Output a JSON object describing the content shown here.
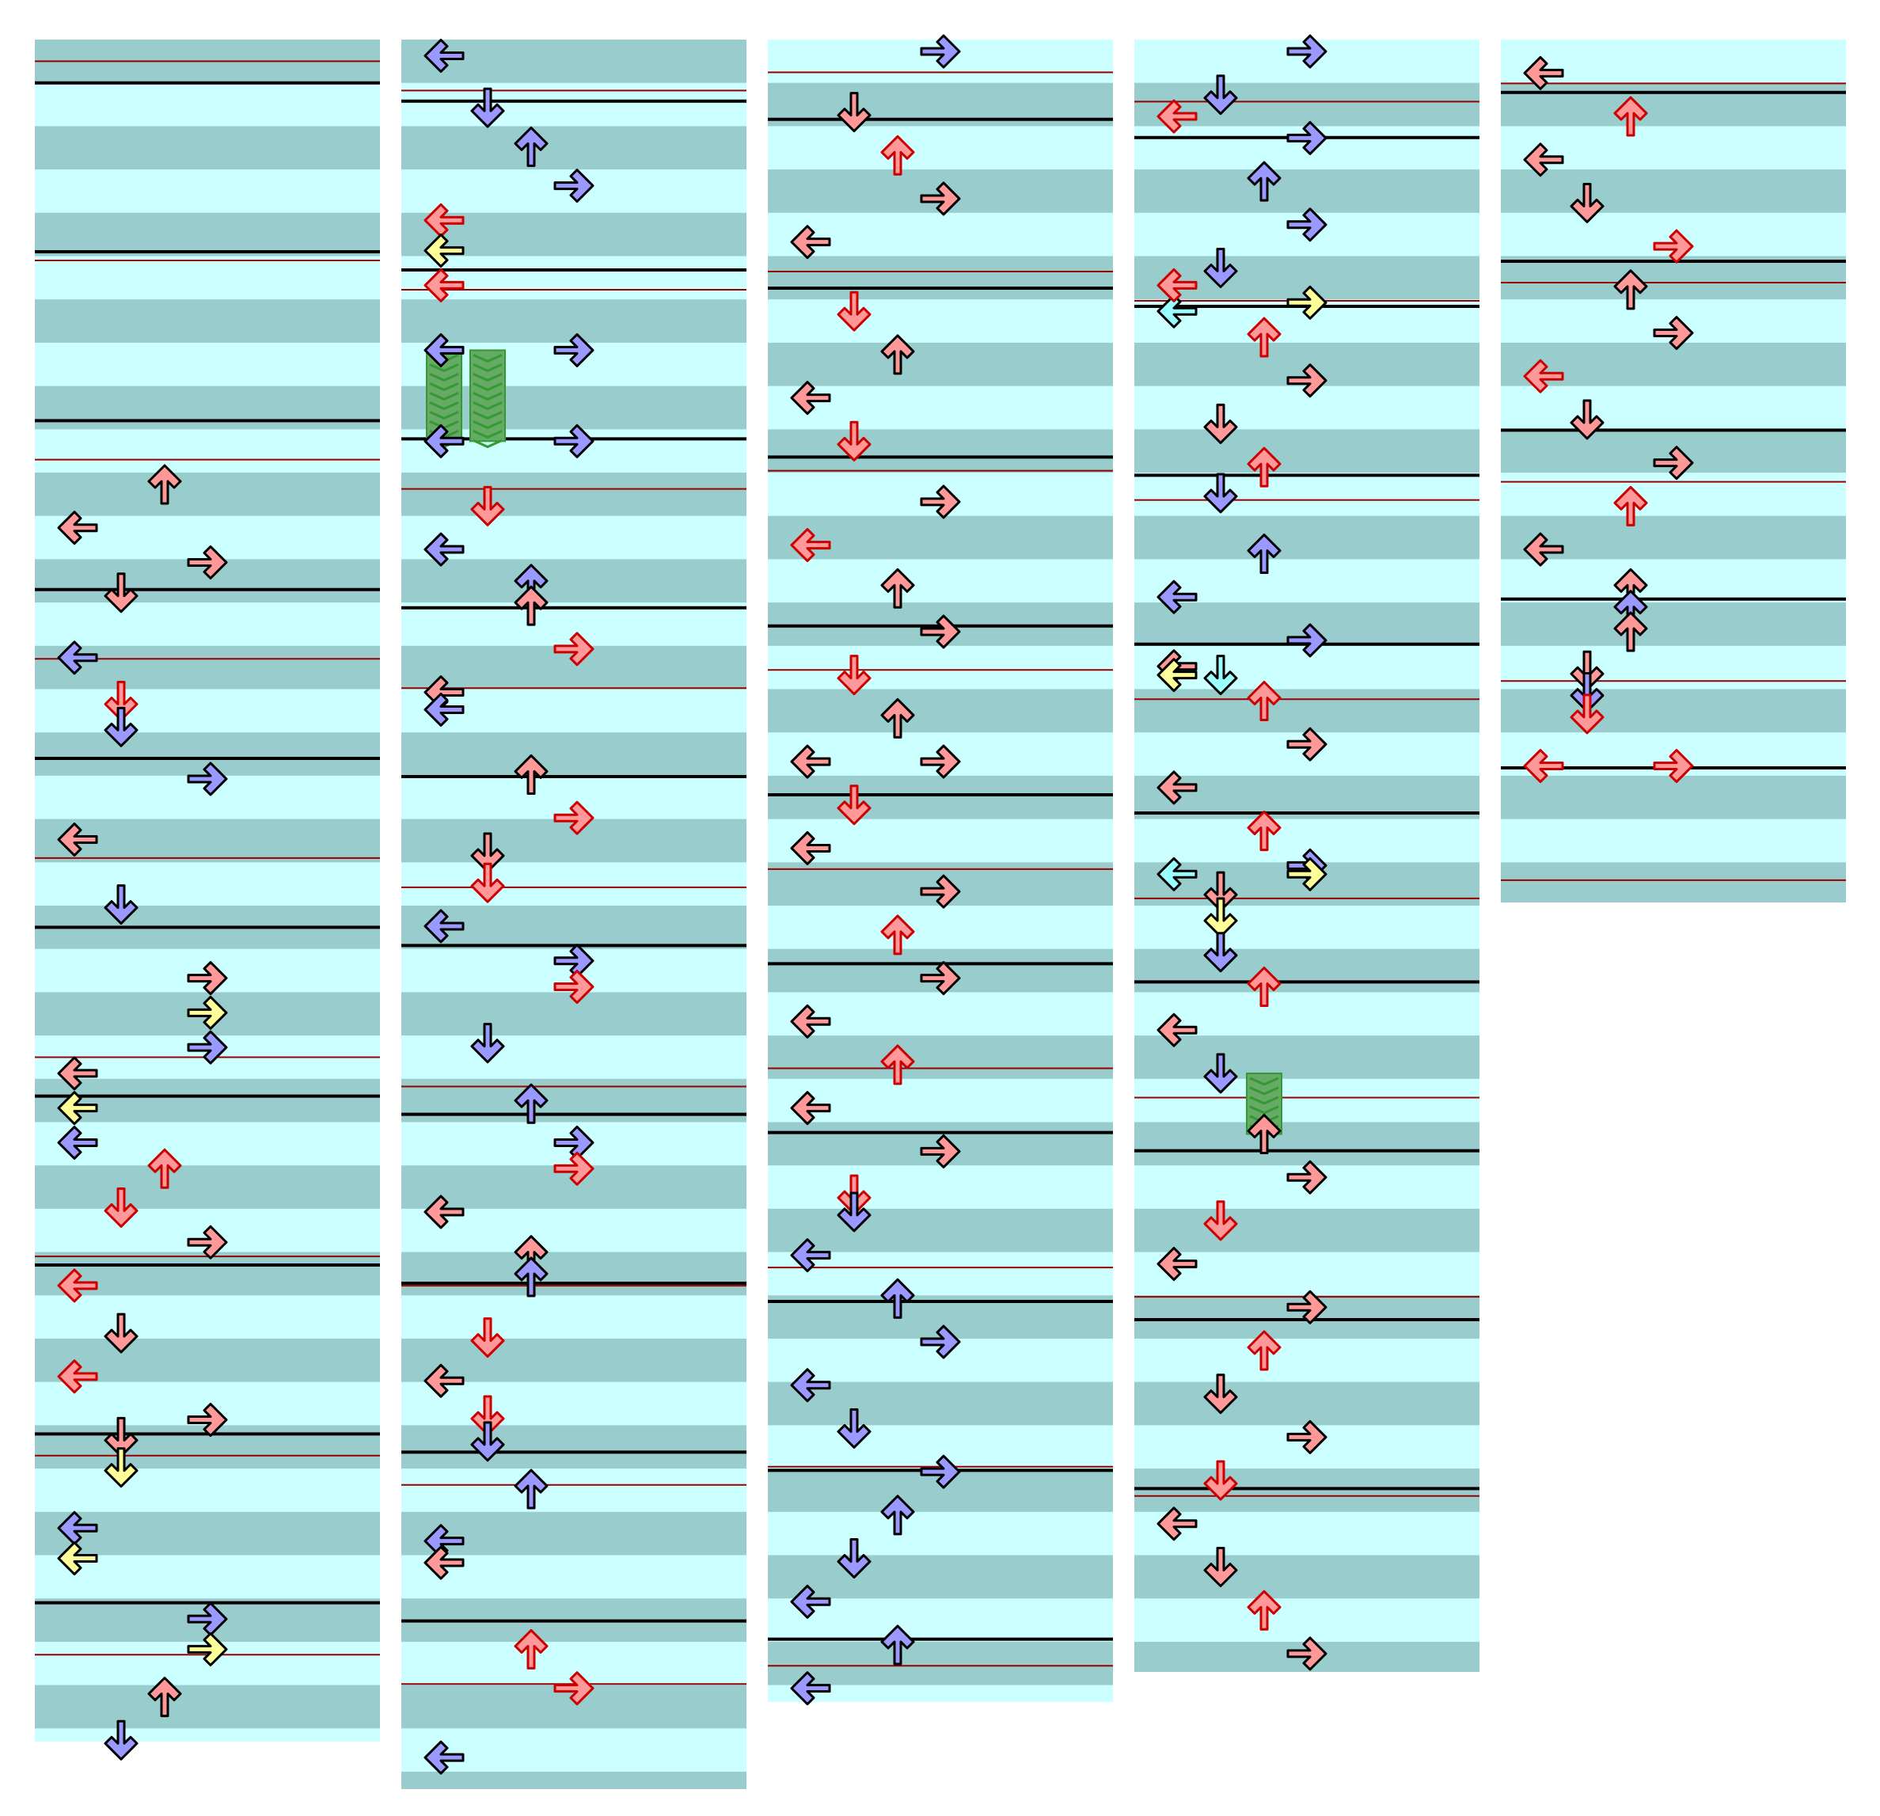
{
  "colors": {
    "background": "#ffffff",
    "lane_light": "#ccffff",
    "lane_dark": "#99cccc",
    "beat_line": "#000000",
    "bpm_line": "#990000",
    "arrow_red": "#ff9999",
    "arrow_blue": "#9999ff",
    "arrow_yellow": "#ffff99",
    "arrow_cyan": "#99ffff",
    "arrow_outline": "#000000",
    "arrow_outline_red": "#cc0000",
    "freeze_fill": "#66aa66",
    "freeze_stripe": "#339933"
  },
  "arrow_icons": {
    "left": "left-arrow-icon",
    "down": "down-arrow-icon",
    "up": "up-arrow-icon",
    "right": "right-arrow-icon"
  },
  "columns": [
    {
      "name": "column-1",
      "notes": [
        [
          "U",
          "red",
          10.0
        ],
        [
          "L",
          "red",
          11.0
        ],
        [
          "R",
          "red",
          11.8
        ],
        [
          "D",
          "red",
          12.5
        ],
        [
          "L",
          "blue",
          14.0
        ],
        [
          "D",
          "red",
          15.0
        ],
        [
          "D",
          "blue",
          15.6
        ],
        [
          "R",
          "blue",
          16.8
        ],
        [
          "L",
          "red",
          18.2
        ],
        [
          "D",
          "blue",
          19.7
        ],
        [
          "R",
          "red",
          21.4
        ],
        [
          "R",
          "yellow",
          22.2
        ],
        [
          "R",
          "blue",
          23.0
        ],
        [
          "L",
          "red",
          23.6
        ],
        [
          "L",
          "yellow",
          24.4
        ],
        [
          "L",
          "blue",
          25.2
        ],
        [
          "U",
          "red",
          25.8
        ],
        [
          "D",
          "red",
          26.7
        ],
        [
          "R",
          "red",
          27.5
        ],
        [
          "L",
          "red",
          28.5
        ],
        [
          "D",
          "red",
          29.6
        ],
        [
          "L",
          "red",
          30.6
        ],
        [
          "R",
          "red",
          31.6
        ],
        [
          "D",
          "red",
          32.0
        ],
        [
          "D",
          "yellow",
          32.7
        ],
        [
          "L",
          "blue",
          34.1
        ],
        [
          "L",
          "yellow",
          34.8
        ],
        [
          "R",
          "blue",
          36.2
        ],
        [
          "R",
          "yellow",
          36.9
        ],
        [
          "U",
          "red",
          38.0
        ],
        [
          "D",
          "blue",
          39.0
        ]
      ]
    },
    {
      "name": "column-2",
      "notes": [
        [
          "L",
          "blue",
          0.1
        ],
        [
          "D",
          "blue",
          1.3
        ],
        [
          "U",
          "blue",
          2.2
        ],
        [
          "R",
          "blue",
          3.1
        ],
        [
          "L",
          "red",
          3.9
        ],
        [
          "L",
          "yellow",
          4.6
        ],
        [
          "L",
          "red",
          5.4
        ],
        [
          "R",
          "blue",
          6.9
        ],
        [
          "L",
          "blue",
          6.9
        ],
        [
          "R",
          "blue",
          9.0
        ],
        [
          "L",
          "blue",
          9.0
        ],
        [
          "D",
          "red",
          10.5
        ],
        [
          "L",
          "blue",
          11.5
        ],
        [
          "U",
          "blue",
          12.3
        ],
        [
          "U",
          "red",
          12.8
        ],
        [
          "R",
          "red",
          13.8
        ],
        [
          "L",
          "red",
          14.8
        ],
        [
          "L",
          "blue",
          15.2
        ],
        [
          "U",
          "red",
          16.7
        ],
        [
          "R",
          "red",
          17.7
        ],
        [
          "D",
          "red",
          18.5
        ],
        [
          "D",
          "red",
          19.2
        ],
        [
          "L",
          "blue",
          20.2
        ],
        [
          "R",
          "blue",
          21.0
        ],
        [
          "R",
          "red",
          21.6
        ],
        [
          "D",
          "blue",
          22.9
        ],
        [
          "U",
          "blue",
          24.3
        ],
        [
          "R",
          "blue",
          25.2
        ],
        [
          "R",
          "red",
          25.8
        ],
        [
          "L",
          "red",
          26.8
        ],
        [
          "U",
          "red",
          27.8
        ],
        [
          "U",
          "blue",
          28.3
        ],
        [
          "D",
          "red",
          29.7
        ],
        [
          "L",
          "red",
          30.7
        ],
        [
          "D",
          "red",
          31.5
        ],
        [
          "D",
          "blue",
          32.1
        ],
        [
          "U",
          "blue",
          33.2
        ],
        [
          "L",
          "blue",
          34.4
        ],
        [
          "L",
          "red",
          34.9
        ],
        [
          "U",
          "red",
          36.9
        ],
        [
          "R",
          "red",
          37.8
        ],
        [
          "L",
          "blue",
          39.4
        ],
        [
          "R",
          "blue",
          40.5
        ]
      ],
      "freezes": [
        {
          "lane": "L",
          "start": 6.9,
          "end": 9.0
        },
        {
          "lane": "D",
          "start": 6.9,
          "end": 9.0
        }
      ]
    },
    {
      "name": "column-3",
      "notes": [
        [
          "R",
          "blue",
          0.0
        ],
        [
          "D",
          "red",
          1.4
        ],
        [
          "U",
          "red",
          2.4
        ],
        [
          "R",
          "red",
          3.4
        ],
        [
          "L",
          "red",
          4.4
        ],
        [
          "D",
          "red",
          6.0
        ],
        [
          "U",
          "red",
          7.0
        ],
        [
          "L",
          "red",
          8.0
        ],
        [
          "D",
          "red",
          9.0
        ],
        [
          "R",
          "red",
          10.4
        ],
        [
          "L",
          "red",
          11.4
        ],
        [
          "U",
          "red",
          12.4
        ],
        [
          "R",
          "red",
          13.4
        ],
        [
          "D",
          "red",
          14.4
        ],
        [
          "U",
          "red",
          15.4
        ],
        [
          "L",
          "red",
          16.4
        ],
        [
          "R",
          "red",
          16.4
        ],
        [
          "D",
          "red",
          17.4
        ],
        [
          "L",
          "red",
          18.4
        ],
        [
          "R",
          "red",
          19.4
        ],
        [
          "U",
          "red",
          20.4
        ],
        [
          "R",
          "red",
          21.4
        ],
        [
          "L",
          "red",
          22.4
        ],
        [
          "U",
          "red",
          23.4
        ],
        [
          "L",
          "red",
          24.4
        ],
        [
          "R",
          "red",
          25.4
        ],
        [
          "D",
          "red",
          26.4
        ],
        [
          "D",
          "blue",
          26.8
        ],
        [
          "L",
          "blue",
          27.8
        ],
        [
          "U",
          "blue",
          28.8
        ],
        [
          "R",
          "blue",
          29.8
        ],
        [
          "L",
          "blue",
          30.8
        ],
        [
          "D",
          "blue",
          31.8
        ],
        [
          "R",
          "blue",
          32.8
        ],
        [
          "U",
          "blue",
          33.8
        ],
        [
          "D",
          "blue",
          34.8
        ],
        [
          "L",
          "blue",
          35.8
        ],
        [
          "U",
          "blue",
          36.8
        ],
        [
          "L",
          "blue",
          37.8
        ]
      ]
    },
    {
      "name": "column-4",
      "notes": [
        [
          "R",
          "blue",
          0.0
        ],
        [
          "D",
          "blue",
          1.0
        ],
        [
          "L",
          "red",
          1.5
        ],
        [
          "R",
          "blue",
          2.0
        ],
        [
          "U",
          "blue",
          3.0
        ],
        [
          "R",
          "blue",
          4.0
        ],
        [
          "D",
          "blue",
          5.0
        ],
        [
          "R",
          "yellow",
          5.8
        ],
        [
          "L",
          "cyan",
          6.0
        ],
        [
          "L",
          "red",
          5.4
        ],
        [
          "U",
          "red",
          6.6
        ],
        [
          "R",
          "red",
          7.6
        ],
        [
          "D",
          "red",
          8.6
        ],
        [
          "U",
          "red",
          9.6
        ],
        [
          "D",
          "blue",
          10.2
        ],
        [
          "U",
          "blue",
          11.6
        ],
        [
          "L",
          "blue",
          12.6
        ],
        [
          "R",
          "blue",
          13.6
        ],
        [
          "L",
          "red",
          14.2
        ],
        [
          "L",
          "yellow",
          14.4
        ],
        [
          "D",
          "cyan",
          14.4
        ],
        [
          "U",
          "red",
          15.0
        ],
        [
          "R",
          "red",
          16.0
        ],
        [
          "L",
          "red",
          17.0
        ],
        [
          "U",
          "red",
          18.0
        ],
        [
          "L",
          "cyan",
          19.0
        ],
        [
          "R",
          "blue",
          18.8
        ],
        [
          "R",
          "yellow",
          19.0
        ],
        [
          "D",
          "red",
          19.4
        ],
        [
          "D",
          "yellow",
          20.0
        ],
        [
          "D",
          "blue",
          20.8
        ],
        [
          "U",
          "red",
          21.6
        ],
        [
          "L",
          "red",
          22.6
        ],
        [
          "D",
          "blue",
          23.6
        ],
        [
          "U",
          "red",
          25.0
        ],
        [
          "R",
          "red",
          26.0
        ],
        [
          "D",
          "red",
          27.0
        ],
        [
          "L",
          "red",
          28.0
        ],
        [
          "R",
          "red",
          29.0
        ],
        [
          "U",
          "red",
          30.0
        ],
        [
          "D",
          "red",
          31.0
        ],
        [
          "R",
          "red",
          32.0
        ],
        [
          "D",
          "red",
          33.0
        ],
        [
          "L",
          "red",
          34.0
        ],
        [
          "D",
          "red",
          35.0
        ],
        [
          "U",
          "red",
          36.0
        ],
        [
          "R",
          "red",
          37.0
        ]
      ],
      "freezes": [
        {
          "lane": "U",
          "start": 23.6,
          "end": 25.0
        }
      ]
    },
    {
      "name": "column-5",
      "notes": [
        [
          "L",
          "red",
          0.5
        ],
        [
          "U",
          "red",
          1.5
        ],
        [
          "L",
          "red",
          2.5
        ],
        [
          "D",
          "red",
          3.5
        ],
        [
          "R",
          "red",
          4.5
        ],
        [
          "U",
          "red",
          5.5
        ],
        [
          "R",
          "red",
          6.5
        ],
        [
          "L",
          "red",
          7.5
        ],
        [
          "D",
          "red",
          8.5
        ],
        [
          "R",
          "red",
          9.5
        ],
        [
          "U",
          "red",
          10.5
        ],
        [
          "L",
          "red",
          11.5
        ],
        [
          "U",
          "red",
          12.4
        ],
        [
          "U",
          "blue",
          12.9
        ],
        [
          "U",
          "red",
          13.4
        ],
        [
          "D",
          "red",
          14.3
        ],
        [
          "D",
          "blue",
          14.8
        ],
        [
          "D",
          "red",
          15.3
        ],
        [
          "L",
          "red",
          16.5
        ],
        [
          "R",
          "red",
          16.5
        ]
      ]
    }
  ]
}
